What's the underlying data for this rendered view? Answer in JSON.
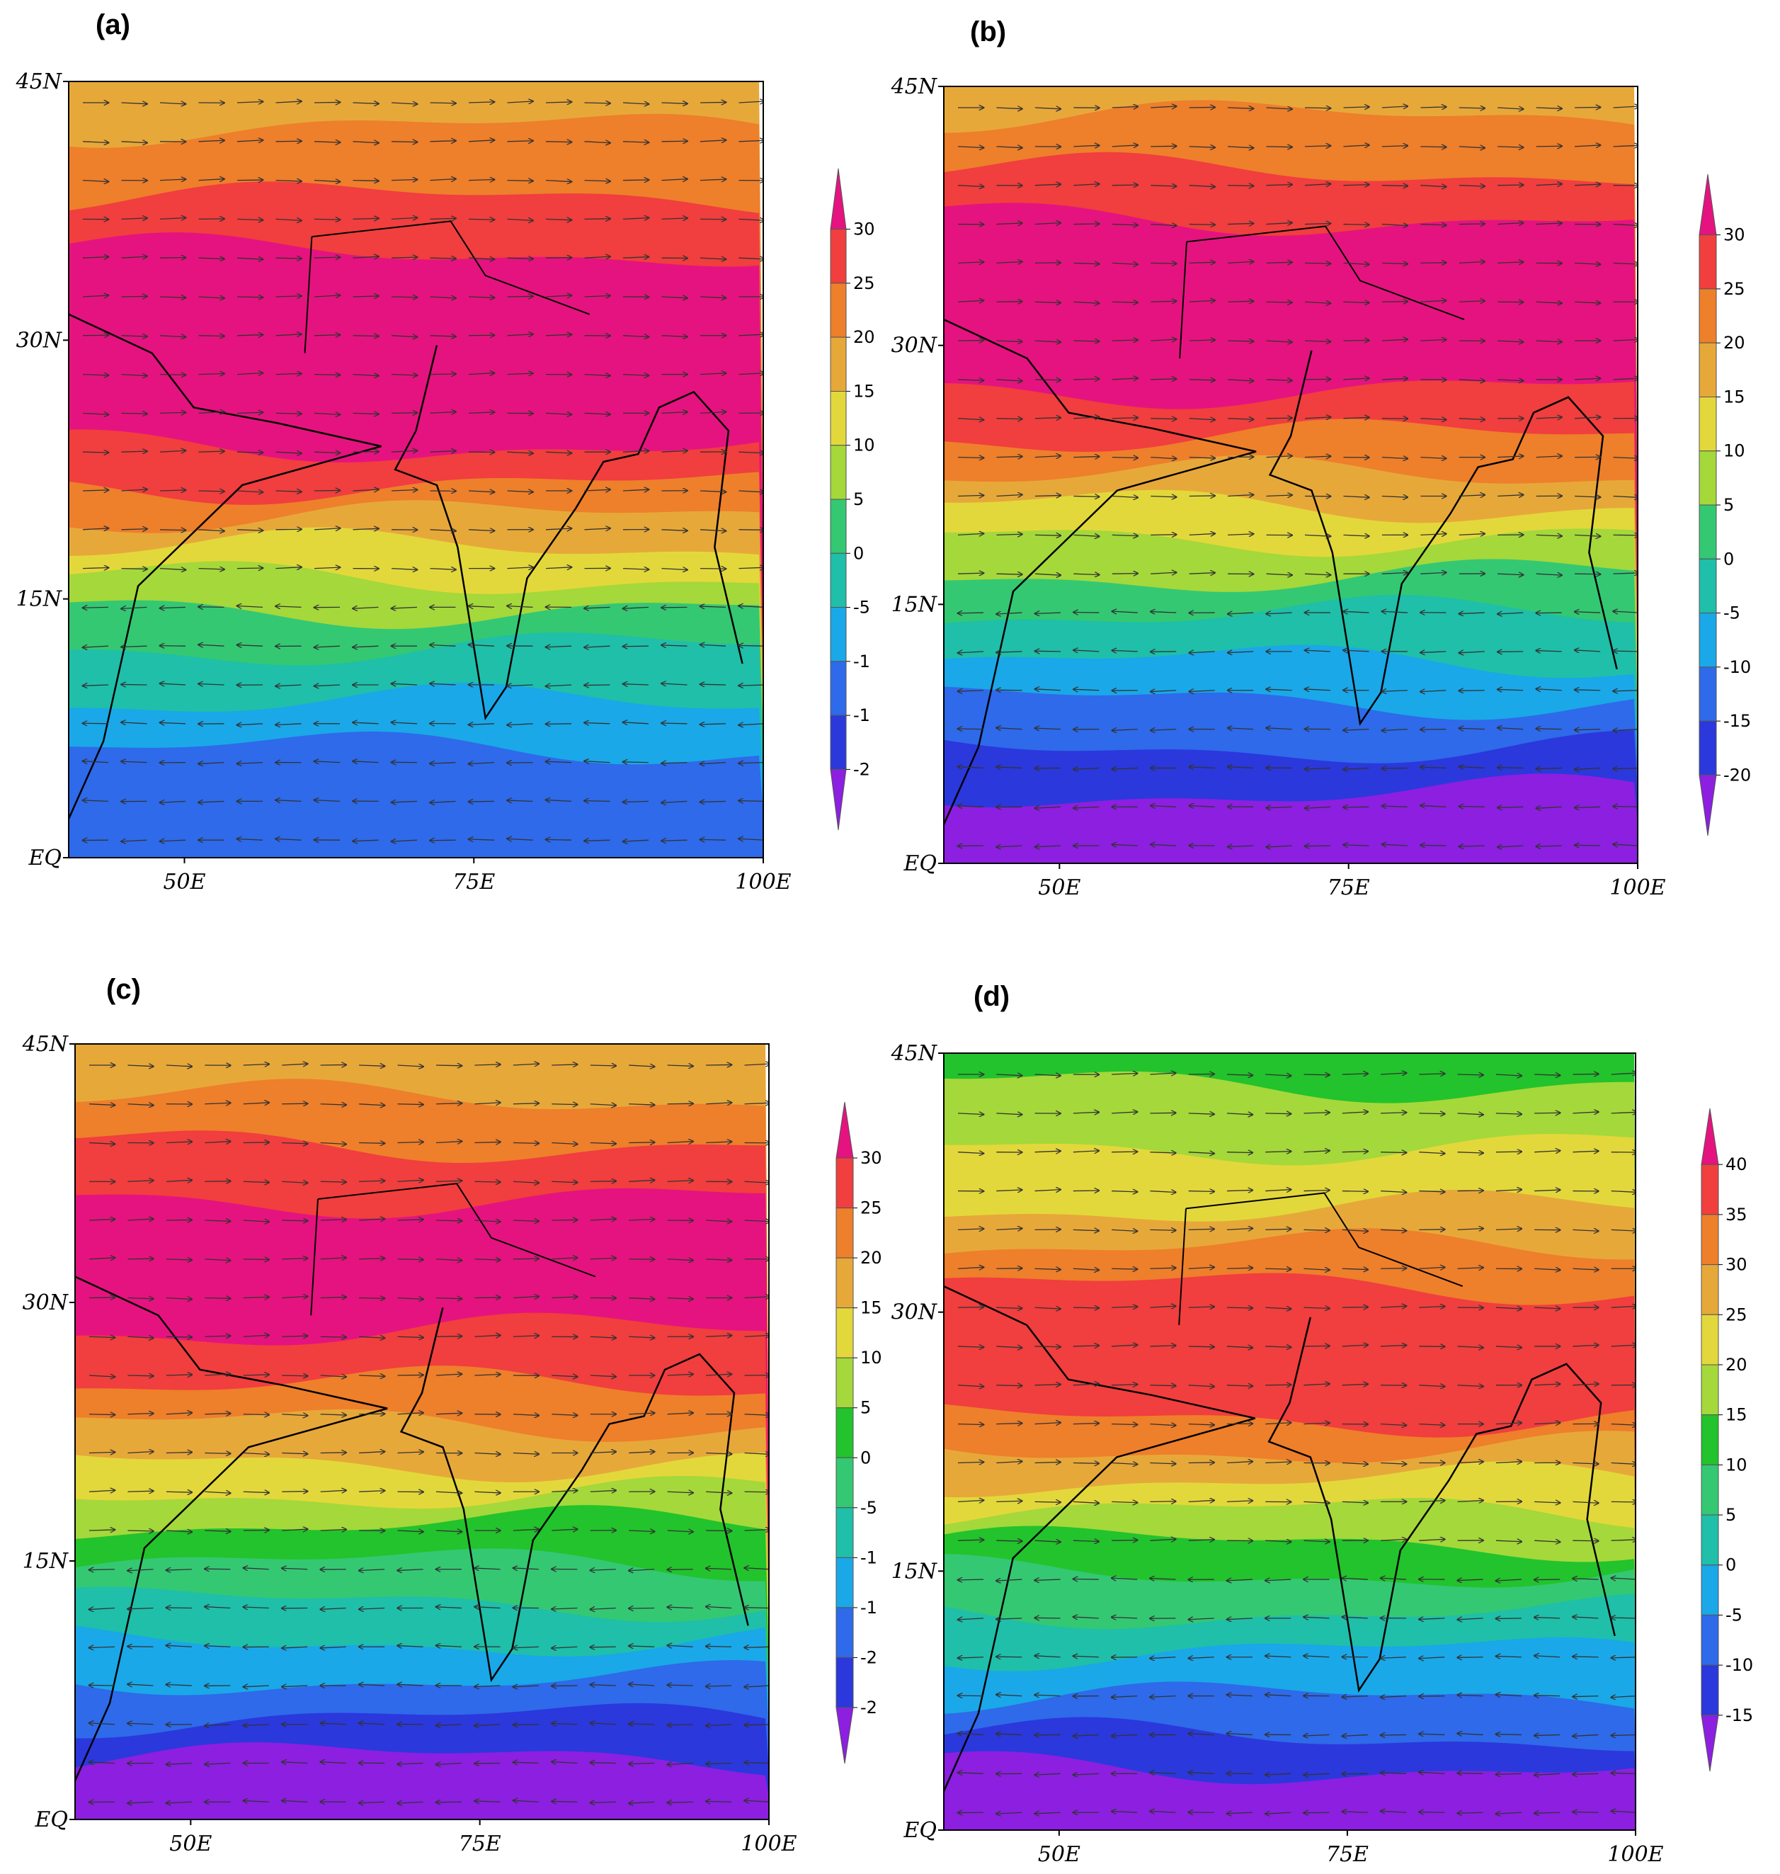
{
  "panels": [
    {
      "label": "(a)",
      "yticks": [
        "45N",
        "30N",
        "15N",
        "EQ"
      ],
      "xticks": [
        "50E",
        "75E",
        "100E"
      ],
      "colorbar": [
        "30",
        "25",
        "20",
        "15",
        "10",
        "5",
        "0",
        "-5",
        "-1",
        "-1",
        "-2"
      ]
    },
    {
      "label": "(b)",
      "yticks": [
        "45N",
        "30N",
        "15N",
        "EQ"
      ],
      "xticks": [
        "50E",
        "75E",
        "100E"
      ],
      "colorbar": [
        "30",
        "25",
        "20",
        "15",
        "10",
        "5",
        "0",
        "-5",
        "-10",
        "-15",
        "-20"
      ]
    },
    {
      "label": "(c)",
      "yticks": [
        "45N",
        "30N",
        "15N",
        "EQ"
      ],
      "xticks": [
        "50E",
        "75E",
        "100E"
      ],
      "colorbar": [
        "30",
        "25",
        "20",
        "15",
        "10",
        "5",
        "0",
        "-5",
        "-1",
        "-1",
        "-2",
        "-2"
      ]
    },
    {
      "label": "(d)",
      "yticks": [
        "45N",
        "30N",
        "15N",
        "EQ"
      ],
      "xticks": [
        "50E",
        "75E",
        "100E"
      ],
      "colorbar": [
        "40",
        "35",
        "30",
        "25",
        "20",
        "15",
        "10",
        "5",
        "0",
        "-5",
        "-10",
        "-15"
      ]
    }
  ]
}
